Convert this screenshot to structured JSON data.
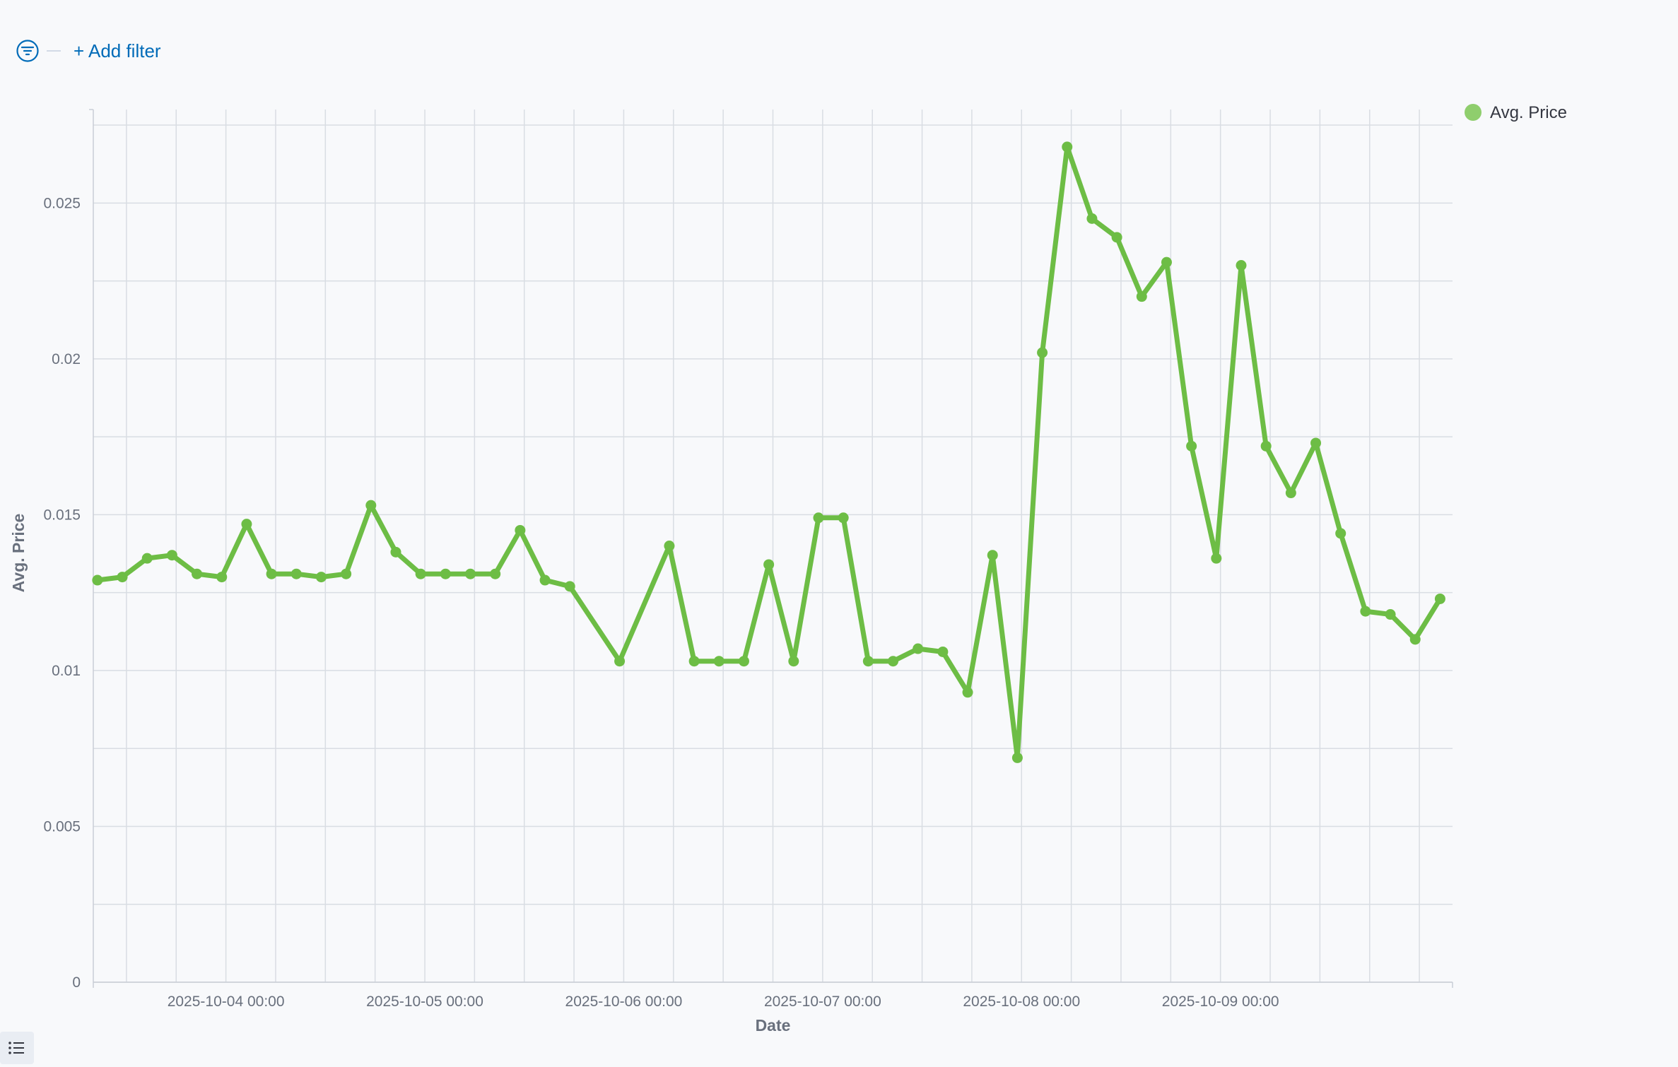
{
  "filter_bar": {
    "add_filter_label": "+ Add filter",
    "icon": "filter-icon"
  },
  "colors": {
    "series": "#6dbd45",
    "legend_dot": "#8fce6d",
    "grid": "#d9dde3",
    "axis_text": "#69707d",
    "link": "#006bb8"
  },
  "chart_data": {
    "type": "line",
    "xlabel": "Date",
    "ylabel": "Avg. Price",
    "ylim": [
      0,
      0.028
    ],
    "yticks": [
      0,
      0.005,
      0.01,
      0.015,
      0.02,
      0.025
    ],
    "ytick_labels": [
      "0",
      "0.005",
      "0.01",
      "0.015",
      "0.02",
      "0.025"
    ],
    "xlim": [
      "2025-10-03 08:00",
      "2025-10-10 04:00"
    ],
    "xticks": [
      "2025-10-04 00:00",
      "2025-10-05 00:00",
      "2025-10-06 00:00",
      "2025-10-07 00:00",
      "2025-10-08 00:00",
      "2025-10-09 00:00"
    ],
    "grid": true,
    "legend_position": "top-right",
    "series": [
      {
        "name": "Avg. Price",
        "points": [
          [
            "2025-10-03 08:30",
            0.0129
          ],
          [
            "2025-10-03 11:30",
            0.013
          ],
          [
            "2025-10-03 14:30",
            0.0136
          ],
          [
            "2025-10-03 17:30",
            0.0137
          ],
          [
            "2025-10-03 20:30",
            0.0131
          ],
          [
            "2025-10-03 23:30",
            0.013
          ],
          [
            "2025-10-04 02:30",
            0.0147
          ],
          [
            "2025-10-04 05:30",
            0.0131
          ],
          [
            "2025-10-04 08:30",
            0.0131
          ],
          [
            "2025-10-04 11:30",
            0.013
          ],
          [
            "2025-10-04 14:30",
            0.0131
          ],
          [
            "2025-10-04 17:30",
            0.0153
          ],
          [
            "2025-10-04 20:30",
            0.0138
          ],
          [
            "2025-10-04 23:30",
            0.0131
          ],
          [
            "2025-10-05 02:30",
            0.0131
          ],
          [
            "2025-10-05 05:30",
            0.0131
          ],
          [
            "2025-10-05 08:30",
            0.0131
          ],
          [
            "2025-10-05 11:30",
            0.0145
          ],
          [
            "2025-10-05 14:30",
            0.0129
          ],
          [
            "2025-10-05 17:30",
            0.0127
          ],
          [
            "2025-10-05 23:30",
            0.0103
          ],
          [
            "2025-10-06 05:30",
            0.014
          ],
          [
            "2025-10-06 08:30",
            0.0103
          ],
          [
            "2025-10-06 11:30",
            0.0103
          ],
          [
            "2025-10-06 14:30",
            0.0103
          ],
          [
            "2025-10-06 17:30",
            0.0134
          ],
          [
            "2025-10-06 20:30",
            0.0103
          ],
          [
            "2025-10-06 23:30",
            0.0149
          ],
          [
            "2025-10-07 02:30",
            0.0149
          ],
          [
            "2025-10-07 05:30",
            0.0103
          ],
          [
            "2025-10-07 08:30",
            0.0103
          ],
          [
            "2025-10-07 11:30",
            0.0107
          ],
          [
            "2025-10-07 14:30",
            0.0106
          ],
          [
            "2025-10-07 17:30",
            0.0093
          ],
          [
            "2025-10-07 20:30",
            0.0137
          ],
          [
            "2025-10-07 23:30",
            0.0072
          ],
          [
            "2025-10-08 02:30",
            0.0202
          ],
          [
            "2025-10-08 05:30",
            0.0268
          ],
          [
            "2025-10-08 08:30",
            0.0245
          ],
          [
            "2025-10-08 11:30",
            0.0239
          ],
          [
            "2025-10-08 14:30",
            0.022
          ],
          [
            "2025-10-08 17:30",
            0.0231
          ],
          [
            "2025-10-08 20:30",
            0.0172
          ],
          [
            "2025-10-08 23:30",
            0.0136
          ],
          [
            "2025-10-09 02:30",
            0.023
          ],
          [
            "2025-10-09 05:30",
            0.0172
          ],
          [
            "2025-10-09 08:30",
            0.0157
          ],
          [
            "2025-10-09 11:30",
            0.0173
          ],
          [
            "2025-10-09 14:30",
            0.0144
          ],
          [
            "2025-10-09 17:30",
            0.0119
          ],
          [
            "2025-10-09 20:30",
            0.0118
          ],
          [
            "2025-10-09 23:30",
            0.011
          ],
          [
            "2025-10-10 02:30",
            0.0123
          ]
        ]
      }
    ]
  }
}
